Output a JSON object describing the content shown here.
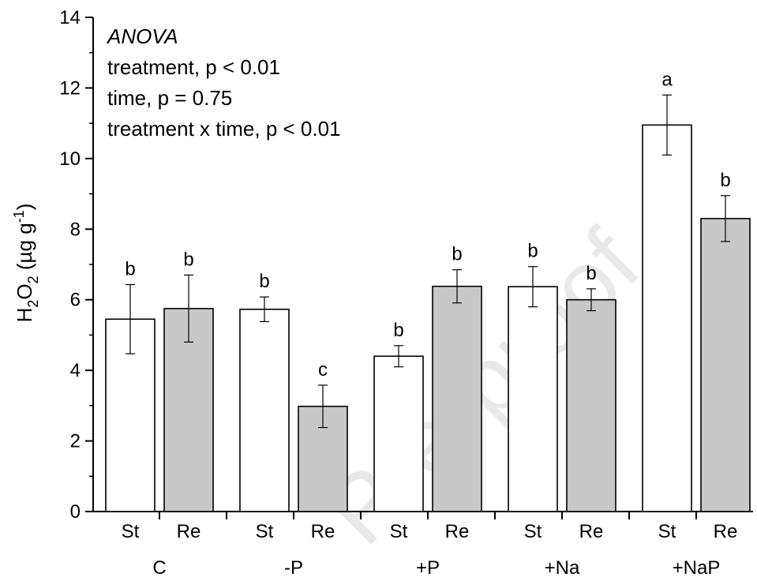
{
  "chart_data": {
    "type": "bar",
    "ylabel": {
      "main": "H",
      "sub1": "2",
      "mid": "O",
      "sub2": "2",
      "unit_pre": " (µg g",
      "unit_sup": "-1",
      "unit_post": ")"
    },
    "ylim": [
      0,
      14
    ],
    "yticks": [
      "0",
      "2",
      "4",
      "6",
      "8",
      "10",
      "12",
      "14"
    ],
    "grid": false,
    "groups": [
      {
        "name": "C",
        "bars": [
          {
            "label": "St",
            "value": 5.45,
            "error": 0.98,
            "sig": "b",
            "fill": "#ffffff"
          },
          {
            "label": "Re",
            "value": 5.75,
            "error": 0.95,
            "sig": "b",
            "fill": "#c8c8c8"
          }
        ]
      },
      {
        "name": "-P",
        "bars": [
          {
            "label": "St",
            "value": 5.73,
            "error": 0.35,
            "sig": "b",
            "fill": "#ffffff"
          },
          {
            "label": "Re",
            "value": 2.98,
            "error": 0.6,
            "sig": "c",
            "fill": "#c8c8c8"
          }
        ]
      },
      {
        "name": "+P",
        "bars": [
          {
            "label": "St",
            "value": 4.4,
            "error": 0.3,
            "sig": "b",
            "fill": "#ffffff"
          },
          {
            "label": "Re",
            "value": 6.38,
            "error": 0.47,
            "sig": "b",
            "fill": "#c8c8c8"
          }
        ]
      },
      {
        "name": "+Na",
        "bars": [
          {
            "label": "St",
            "value": 6.37,
            "error": 0.57,
            "sig": "b",
            "fill": "#ffffff"
          },
          {
            "label": "Re",
            "value": 6.0,
            "error": 0.31,
            "sig": "b",
            "fill": "#c8c8c8"
          }
        ]
      },
      {
        "name": "+NaP",
        "bars": [
          {
            "label": "St",
            "value": 10.95,
            "error": 0.85,
            "sig": "a",
            "fill": "#ffffff"
          },
          {
            "label": "Re",
            "value": 8.3,
            "error": 0.65,
            "sig": "b",
            "fill": "#c8c8c8"
          }
        ]
      }
    ],
    "annotation": {
      "title": "ANOVA",
      "lines": [
        "treatment, p < 0.01",
        "time, p = 0.75",
        "treatment x time, p < 0.01"
      ]
    }
  },
  "watermark": "Pre-proof"
}
